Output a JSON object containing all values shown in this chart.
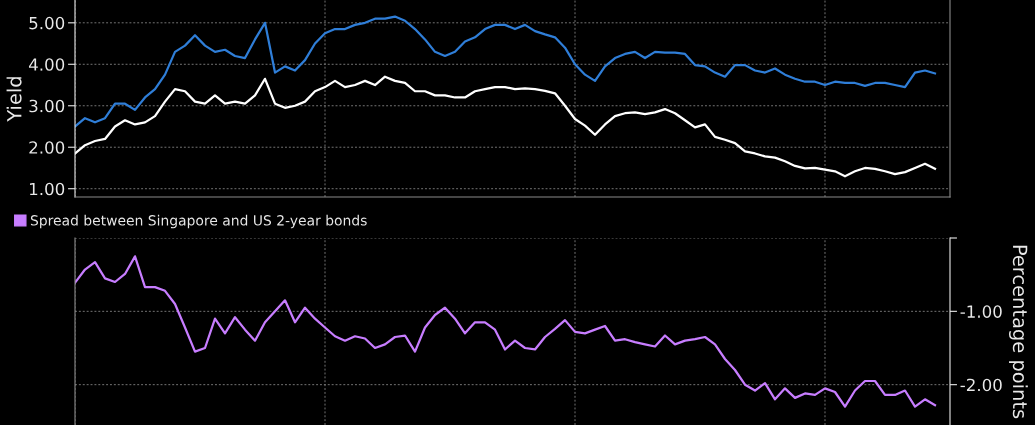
{
  "chart_data": [
    {
      "type": "line",
      "ylabel": "Yield",
      "categories": [
        null,
        null,
        null,
        null,
        null,
        null,
        null,
        null,
        null,
        null,
        null,
        null,
        null,
        null,
        null,
        null,
        null,
        null,
        null,
        null,
        null,
        null,
        null,
        null,
        null,
        null,
        null,
        null,
        null,
        null,
        null,
        null,
        null,
        null,
        null,
        null,
        null,
        null,
        null,
        null,
        null,
        null,
        null,
        null,
        null,
        null,
        null,
        null,
        null,
        null,
        null,
        null,
        null,
        null,
        null,
        null,
        null,
        null,
        null,
        null,
        null,
        null,
        null,
        null,
        null,
        null,
        null,
        null,
        null,
        null,
        null,
        null,
        null,
        null,
        null,
        null,
        null,
        null,
        null,
        null,
        null,
        null,
        null,
        null,
        null,
        null,
        null,
        null
      ],
      "ylim": [
        0.8,
        5.55
      ],
      "yticks": [
        {
          "value": 1,
          "label": "1.00"
        },
        {
          "value": 2,
          "label": "2.00"
        },
        {
          "value": 3,
          "label": "3.00"
        },
        {
          "value": 4,
          "label": "4.00"
        },
        {
          "value": 5,
          "label": "5.00"
        }
      ],
      "grid": true,
      "tick_labels": "y",
      "line_style": "solid",
      "marker": "none",
      "series": [
        {
          "color": "#2f7ed8",
          "values": [
            2.5,
            2.7,
            2.6,
            2.7,
            3.05,
            3.05,
            2.9,
            3.2,
            3.4,
            3.75,
            4.3,
            4.45,
            4.7,
            4.45,
            4.3,
            4.35,
            4.2,
            4.15,
            4.6,
            5.0,
            3.8,
            3.95,
            3.85,
            4.1,
            4.5,
            4.75,
            4.85,
            4.85,
            4.95,
            5.0,
            5.1,
            5.1,
            5.15,
            5.05,
            4.85,
            4.6,
            4.3,
            4.2,
            4.3,
            4.55,
            4.65,
            4.85,
            4.95,
            4.95,
            4.85,
            4.95,
            4.8,
            4.72,
            4.65,
            4.4,
            4.0,
            3.75,
            3.6,
            3.95,
            4.15,
            4.25,
            4.3,
            4.15,
            4.3,
            4.28,
            4.28,
            4.25,
            3.98,
            3.95,
            3.8,
            3.7,
            3.98,
            3.98,
            3.85,
            3.8,
            3.9,
            3.75,
            3.65,
            3.58,
            3.58,
            3.5,
            3.58,
            3.55,
            3.55,
            3.48,
            3.55,
            3.55,
            3.5,
            3.45,
            3.8,
            3.85,
            3.78,
            null
          ]
        },
        {
          "color": "#ffffff",
          "values": [
            1.85,
            2.05,
            2.15,
            2.2,
            2.5,
            2.65,
            2.55,
            2.6,
            2.75,
            3.1,
            3.4,
            3.35,
            3.1,
            3.05,
            3.25,
            3.05,
            3.1,
            3.05,
            3.25,
            3.65,
            3.05,
            2.95,
            3.0,
            3.1,
            3.35,
            3.45,
            3.6,
            3.45,
            3.5,
            3.6,
            3.5,
            3.7,
            3.6,
            3.55,
            3.35,
            3.35,
            3.25,
            3.25,
            3.2,
            3.2,
            3.35,
            3.4,
            3.45,
            3.45,
            3.4,
            3.42,
            3.4,
            3.36,
            3.3,
            3.0,
            2.68,
            2.52,
            2.3,
            2.55,
            2.75,
            2.82,
            2.84,
            2.8,
            2.84,
            2.92,
            2.82,
            2.65,
            2.48,
            2.55,
            2.25,
            2.18,
            2.1,
            1.9,
            1.85,
            1.78,
            1.75,
            1.66,
            1.55,
            1.49,
            1.5,
            1.46,
            1.42,
            1.3,
            1.42,
            1.5,
            1.48,
            1.42,
            1.35,
            1.4,
            1.5,
            1.6,
            1.48,
            null
          ]
        }
      ]
    },
    {
      "type": "line",
      "ylabel": "Percentage points",
      "categories": [
        null,
        null,
        null,
        null,
        null,
        null,
        null,
        null,
        null,
        null,
        null,
        null,
        null,
        null,
        null,
        null,
        null,
        null,
        null,
        null,
        null,
        null,
        null,
        null,
        null,
        null,
        null,
        null,
        null,
        null,
        null,
        null,
        null,
        null,
        null,
        null,
        null,
        null,
        null,
        null,
        null,
        null,
        null,
        null,
        null,
        null,
        null,
        null,
        null,
        null,
        null,
        null,
        null,
        null,
        null,
        null,
        null,
        null,
        null,
        null,
        null,
        null,
        null,
        null,
        null,
        null,
        null,
        null,
        null,
        null,
        null,
        null,
        null,
        null,
        null,
        null,
        null,
        null,
        null,
        null,
        null,
        null,
        null,
        null,
        null,
        null,
        null,
        null
      ],
      "ylim": [
        -2.55,
        0
      ],
      "yticks": [
        {
          "value": 0,
          "label": null
        },
        {
          "value": -1,
          "label": "-1.00"
        },
        {
          "value": -2,
          "label": "-2.00"
        }
      ],
      "grid": true,
      "tick_labels": "y",
      "legend": "top left",
      "line_style": "solid",
      "marker": "none",
      "series": [
        {
          "name": "Spread between Singapore and US 2-year bonds",
          "color": "#c77dff",
          "values": [
            -0.61,
            -0.43,
            -0.33,
            -0.55,
            -0.6,
            -0.49,
            -0.25,
            -0.67,
            -0.67,
            -0.72,
            -0.9,
            -1.22,
            -1.55,
            -1.5,
            -1.1,
            -1.3,
            -1.08,
            -1.25,
            -1.4,
            -1.15,
            -1.0,
            -0.85,
            -1.15,
            -0.95,
            -1.1,
            -1.22,
            -1.34,
            -1.4,
            -1.34,
            -1.37,
            -1.5,
            -1.45,
            -1.35,
            -1.33,
            -1.55,
            -1.22,
            -1.05,
            -0.95,
            -1.1,
            -1.3,
            -1.15,
            -1.15,
            -1.25,
            -1.52,
            -1.4,
            -1.5,
            -1.52,
            -1.35,
            -1.24,
            -1.12,
            -1.28,
            -1.3,
            -1.25,
            -1.2,
            -1.4,
            -1.38,
            -1.42,
            -1.45,
            -1.48,
            -1.33,
            -1.45,
            -1.4,
            -1.38,
            -1.35,
            -1.45,
            -1.65,
            -1.8,
            -2.0,
            -2.08,
            -1.98,
            -2.2,
            -2.05,
            -2.18,
            -2.12,
            -2.14,
            -2.05,
            -2.1,
            -2.3,
            -2.08,
            -1.95,
            -1.95,
            -2.14,
            -2.14,
            -2.08,
            -2.3,
            -2.2,
            -2.28,
            null
          ]
        }
      ]
    }
  ]
}
